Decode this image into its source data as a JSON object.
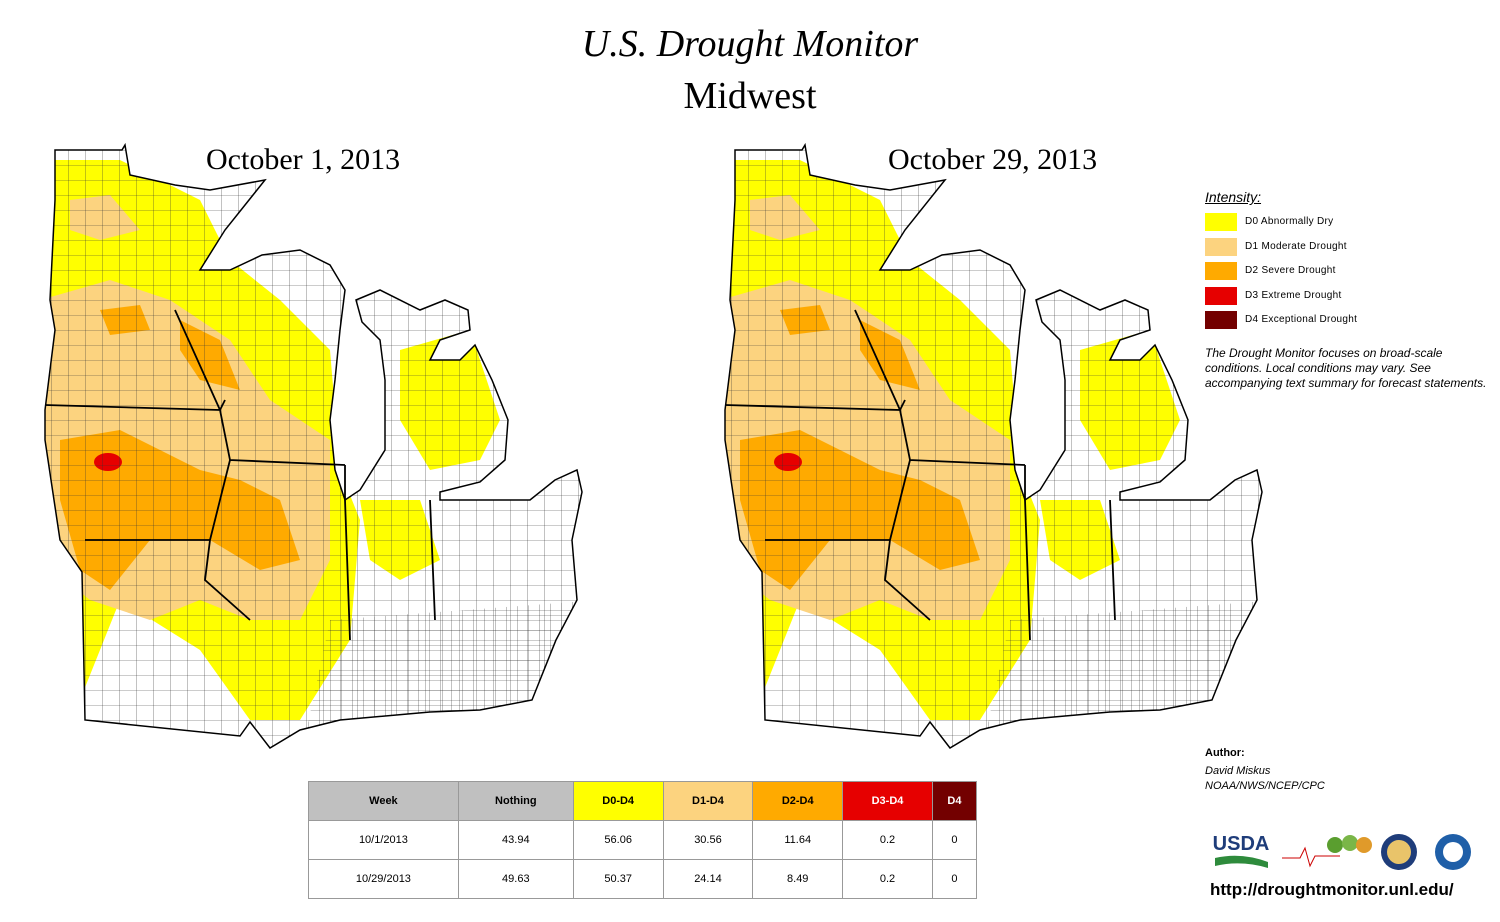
{
  "header": {
    "title": "U.S. Drought Monitor",
    "subtitle": "Midwest"
  },
  "maps": [
    {
      "label": "October 1, 2013"
    },
    {
      "label": "October 29, 2013"
    }
  ],
  "legend": {
    "title": "Intensity:",
    "items": [
      {
        "label": "D0 Abnormally Dry",
        "color": "#ffff00"
      },
      {
        "label": "D1 Moderate Drought",
        "color": "#fcd37f"
      },
      {
        "label": "D2 Severe Drought",
        "color": "#ffaa00"
      },
      {
        "label": "D3 Extreme Drought",
        "color": "#e60000"
      },
      {
        "label": "D4 Exceptional Drought",
        "color": "#730000"
      }
    ],
    "note": "The Drought Monitor focuses on broad-scale conditions. Local conditions may vary. See accompanying text summary for forecast statements."
  },
  "author": {
    "label": "Author:",
    "name": "David Miskus",
    "org": "NOAA/NWS/NCEP/CPC"
  },
  "logos": {
    "usda": "USDA"
  },
  "url": "http://droughtmonitor.unl.edu/",
  "table": {
    "header": [
      {
        "text": "Week",
        "color": "#c0c0c0"
      },
      {
        "text": "Nothing",
        "color": "#c0c0c0"
      },
      {
        "text": "D0-D4",
        "color": "#ffff00"
      },
      {
        "text": "D1-D4",
        "color": "#fcd37f"
      },
      {
        "text": "D2-D4",
        "color": "#ffaa00"
      },
      {
        "text": "D3-D4",
        "color": "#e60000"
      },
      {
        "text": "D4",
        "color": "#730000"
      }
    ],
    "rows": [
      [
        "10/1/2013",
        43.94,
        56.06,
        30.56,
        11.64,
        0.2,
        0
      ],
      [
        "10/29/2013",
        49.63,
        50.37,
        24.14,
        8.49,
        0.2,
        0
      ]
    ]
  }
}
